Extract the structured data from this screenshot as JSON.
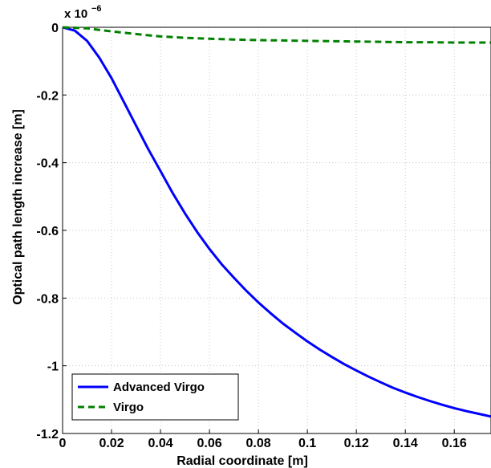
{
  "chart_data": {
    "type": "line",
    "title": "",
    "xlabel": "Radial coordinate [m]",
    "ylabel": "Optical path length increase [m]",
    "xlim": [
      0,
      0.175
    ],
    "ylim": [
      -1.2,
      0
    ],
    "y_multiplier": "x 10",
    "y_multiplier_exponent": "−6",
    "x_ticks": [
      0,
      0.02,
      0.04,
      0.06,
      0.08,
      0.1,
      0.12,
      0.14,
      0.16
    ],
    "x_tick_labels": [
      "0",
      "0.02",
      "0.04",
      "0.06",
      "0.08",
      "0.1",
      "0.12",
      "0.14",
      "0.16"
    ],
    "y_ticks": [
      0,
      -0.2,
      -0.4,
      -0.6,
      -0.8,
      -1,
      -1.2
    ],
    "y_tick_labels": [
      "0",
      "-0.2",
      "-0.4",
      "-0.6",
      "-0.8",
      "-1",
      "-1.2"
    ],
    "grid": true,
    "legend_position": "bottom-left",
    "series": [
      {
        "name": "Advanced Virgo",
        "color": "#0000ff",
        "style": "solid",
        "x": [
          0,
          0.005,
          0.01,
          0.015,
          0.02,
          0.025,
          0.03,
          0.035,
          0.04,
          0.045,
          0.05,
          0.055,
          0.06,
          0.065,
          0.07,
          0.075,
          0.08,
          0.085,
          0.09,
          0.095,
          0.1,
          0.105,
          0.11,
          0.115,
          0.12,
          0.125,
          0.13,
          0.135,
          0.14,
          0.145,
          0.15,
          0.155,
          0.16,
          0.165,
          0.17,
          0.175
        ],
        "y": [
          0,
          -0.01,
          -0.04,
          -0.09,
          -0.15,
          -0.22,
          -0.29,
          -0.36,
          -0.425,
          -0.49,
          -0.55,
          -0.605,
          -0.655,
          -0.7,
          -0.74,
          -0.778,
          -0.813,
          -0.845,
          -0.875,
          -0.902,
          -0.928,
          -0.952,
          -0.974,
          -0.995,
          -1.014,
          -1.032,
          -1.049,
          -1.065,
          -1.079,
          -1.092,
          -1.104,
          -1.115,
          -1.125,
          -1.134,
          -1.142,
          -1.15
        ]
      },
      {
        "name": "Virgo",
        "color": "#008000",
        "style": "dashed",
        "x": [
          0,
          0.01,
          0.02,
          0.03,
          0.04,
          0.05,
          0.06,
          0.07,
          0.08,
          0.09,
          0.1,
          0.11,
          0.12,
          0.13,
          0.14,
          0.15,
          0.16,
          0.17,
          0.175
        ],
        "y": [
          0,
          -0.003,
          -0.012,
          -0.02,
          -0.027,
          -0.031,
          -0.034,
          -0.036,
          -0.038,
          -0.039,
          -0.04,
          -0.041,
          -0.042,
          -0.043,
          -0.044,
          -0.044,
          -0.045,
          -0.045,
          -0.045
        ]
      }
    ]
  }
}
